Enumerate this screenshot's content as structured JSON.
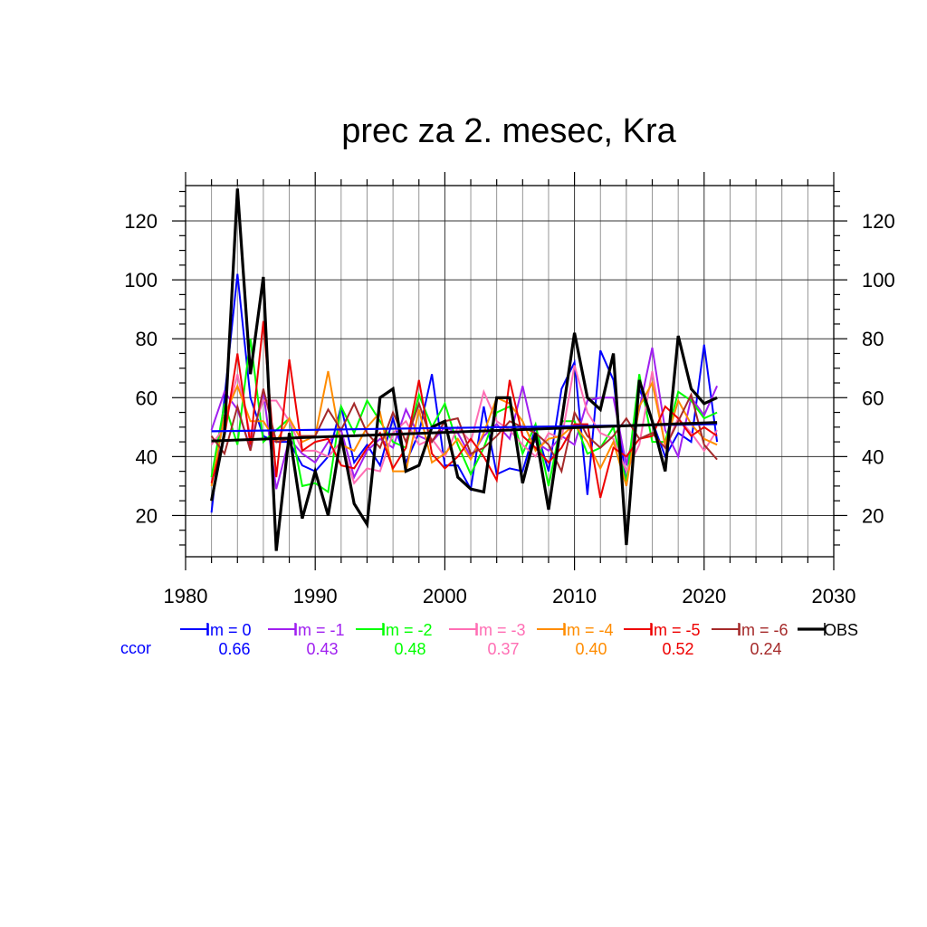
{
  "chart_data": {
    "type": "line",
    "title": "prec za 2. mesec, Kra",
    "xlabel": "",
    "ylabel": "",
    "xlim": [
      1980,
      2030
    ],
    "ylim": [
      6,
      132
    ],
    "x_ticks": [
      1980,
      1990,
      2000,
      2010,
      2020,
      2030
    ],
    "y_ticks": [
      20,
      40,
      60,
      80,
      100,
      120
    ],
    "grid": true,
    "legend_position": "bottom",
    "ccor_label": "ccor",
    "x": [
      1982,
      1983,
      1984,
      1985,
      1986,
      1987,
      1988,
      1989,
      1990,
      1991,
      1992,
      1993,
      1994,
      1995,
      1996,
      1997,
      1998,
      1999,
      2000,
      2001,
      2002,
      2003,
      2004,
      2005,
      2006,
      2007,
      2008,
      2009,
      2010,
      2011,
      2012,
      2013,
      2014,
      2015,
      2016,
      2017,
      2018,
      2019,
      2020,
      2021
    ],
    "series": [
      {
        "name": "lm = 0",
        "ccor": "0.66",
        "color": "#0000ff",
        "width": 2,
        "values": [
          21,
          60,
          102,
          60,
          47,
          45,
          45,
          37,
          35,
          40,
          57,
          38,
          44,
          37,
          53,
          38,
          48,
          68,
          37,
          37,
          29,
          57,
          34,
          36,
          35,
          50,
          35,
          63,
          72,
          27,
          76,
          66,
          30,
          63,
          52,
          40,
          48,
          45,
          78,
          45
        ]
      },
      {
        "name": "lm = -1",
        "ccor": "0.43",
        "color": "#a020f0",
        "width": 2,
        "values": [
          49,
          62,
          56,
          43,
          62,
          29,
          46,
          41,
          38,
          45,
          49,
          33,
          42,
          46,
          43,
          56,
          47,
          45,
          50,
          48,
          40,
          47,
          51,
          46,
          64,
          45,
          42,
          47,
          44,
          59,
          60,
          60,
          37,
          56,
          77,
          49,
          40,
          60,
          54,
          64
        ]
      },
      {
        "name": "lm = -2",
        "ccor": "0.48",
        "color": "#00ff00",
        "width": 2,
        "values": [
          33,
          58,
          44,
          80,
          45,
          49,
          53,
          30,
          31,
          28,
          57,
          48,
          59,
          52,
          45,
          43,
          61,
          50,
          58,
          44,
          34,
          43,
          55,
          57,
          41,
          51,
          30,
          52,
          52,
          41,
          43,
          50,
          31,
          68,
          45,
          45,
          62,
          59,
          53,
          55
        ]
      },
      {
        "name": "lm = -3",
        "ccor": "0.37",
        "color": "#ff6eb4",
        "width": 2,
        "values": [
          44,
          50,
          68,
          47,
          59,
          59,
          52,
          42,
          42,
          40,
          45,
          31,
          36,
          35,
          48,
          52,
          44,
          46,
          40,
          50,
          45,
          62,
          52,
          49,
          44,
          40,
          48,
          46,
          71,
          55,
          48,
          46,
          35,
          44,
          69,
          43,
          53,
          48,
          42,
          49
        ]
      },
      {
        "name": "lm = -4",
        "ccor": "0.40",
        "color": "#ff8c00",
        "width": 2,
        "values": [
          30,
          54,
          64,
          52,
          52,
          45,
          53,
          45,
          47,
          69,
          44,
          42,
          50,
          55,
          35,
          35,
          56,
          38,
          41,
          46,
          39,
          48,
          60,
          58,
          52,
          42,
          46,
          47,
          51,
          45,
          36,
          45,
          30,
          57,
          65,
          44,
          59,
          51,
          46,
          44
        ]
      },
      {
        "name": "lm = -5",
        "ccor": "0.52",
        "color": "#ee0000",
        "width": 2,
        "values": [
          31,
          47,
          75,
          44,
          86,
          33,
          73,
          42,
          45,
          46,
          37,
          36,
          43,
          48,
          36,
          43,
          66,
          41,
          36,
          40,
          46,
          40,
          32,
          66,
          47,
          43,
          38,
          43,
          51,
          51,
          26,
          43,
          40,
          46,
          47,
          57,
          53,
          47,
          50,
          47
        ]
      },
      {
        "name": "lm = -6",
        "ccor": "0.24",
        "color": "#a52a2a",
        "width": 2,
        "values": [
          47,
          41,
          57,
          42,
          63,
          45,
          46,
          47,
          47,
          56,
          49,
          58,
          48,
          43,
          55,
          45,
          58,
          45,
          52,
          53,
          41,
          43,
          47,
          52,
          50,
          48,
          44,
          35,
          55,
          47,
          43,
          47,
          53,
          46,
          48,
          43,
          52,
          61,
          44,
          39
        ]
      },
      {
        "name": "OBS",
        "ccor": "",
        "color": "#000000",
        "width": 3.2,
        "values": [
          25,
          48,
          131,
          68,
          101,
          8,
          48,
          19,
          35,
          20,
          47,
          24,
          17,
          60,
          63,
          35,
          37,
          50,
          52,
          33,
          29,
          28,
          60,
          60,
          31,
          48,
          22,
          52,
          82,
          60,
          56,
          75,
          10,
          66,
          52,
          35,
          81,
          63,
          58,
          60
        ]
      }
    ],
    "trend": {
      "color": "#000000",
      "from": [
        1982,
        45.3
      ],
      "to": [
        2021,
        51.6
      ]
    },
    "trend_lm0": {
      "color": "#0000ff",
      "from": [
        1982,
        48.6
      ],
      "to": [
        2021,
        51.0
      ]
    }
  }
}
